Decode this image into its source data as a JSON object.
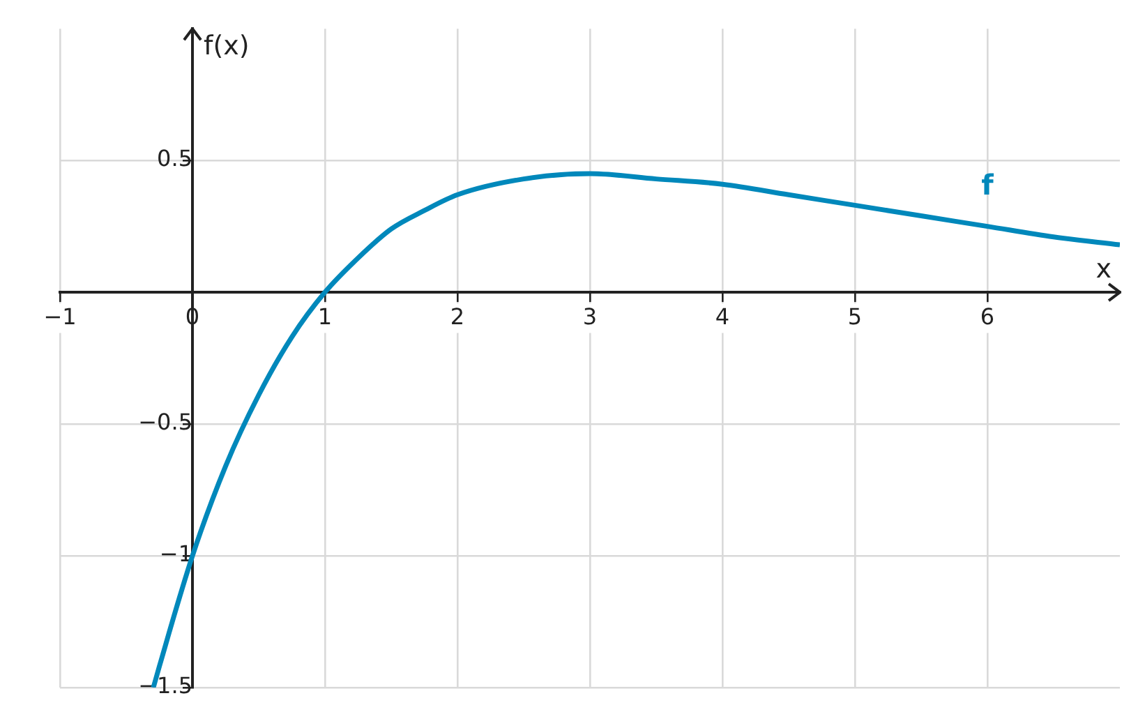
{
  "chart_data": {
    "type": "line",
    "xlabel": "x",
    "ylabel": "f(x)",
    "xlim": [
      -1,
      7
    ],
    "ylim": [
      -1.5,
      1
    ],
    "xticks": [
      -1,
      0,
      1,
      2,
      3,
      4,
      5,
      6
    ],
    "yticks": [
      -1.5,
      -1,
      -0.5,
      {
        "value": 0,
        "label": null
      },
      0.5
    ],
    "grid": true,
    "legend": false,
    "series": [
      {
        "name": "f",
        "color": "#0088bb",
        "x": [
          -0.295,
          -0.25,
          0,
          0.25,
          0.5,
          0.75,
          1,
          1.25,
          1.5,
          1.75,
          2,
          2.5,
          3,
          3.5,
          4,
          4.5,
          5,
          5.5,
          6,
          6.5,
          7
        ],
        "values": [
          -1.5,
          -1.42,
          -1,
          -0.66,
          -0.39,
          -0.17,
          0,
          0.13,
          0.24,
          0.31,
          0.37,
          0.43,
          0.45,
          0.43,
          0.41,
          0.37,
          0.33,
          0.29,
          0.25,
          0.21,
          0.18
        ]
      }
    ]
  }
}
